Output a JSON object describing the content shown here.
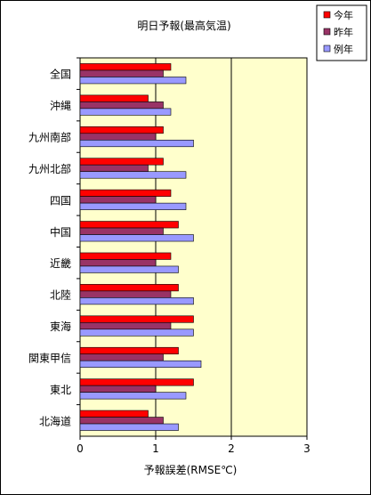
{
  "chart_data": {
    "type": "bar",
    "orientation": "horizontal",
    "title": "明日予報(最高気温)",
    "xlabel": "予報誤差(RMSE℃)",
    "xlim": [
      0,
      3
    ],
    "xticks": [
      "0",
      "1",
      "2",
      "3"
    ],
    "grid": "vertical major lines",
    "legend_position": "top-right",
    "plot_background": "#FFFFCC",
    "categories": [
      "全国",
      "沖縄",
      "九州南部",
      "九州北部",
      "四国",
      "中国",
      "近畿",
      "北陸",
      "東海",
      "関東甲信",
      "東北",
      "北海道"
    ],
    "series": [
      {
        "name": "今年",
        "color": "#FF0000",
        "values": [
          1.2,
          0.9,
          1.1,
          1.1,
          1.2,
          1.3,
          1.2,
          1.3,
          1.5,
          1.3,
          1.5,
          0.9
        ]
      },
      {
        "name": "昨年",
        "color": "#993366",
        "values": [
          1.1,
          1.1,
          1.0,
          0.9,
          1.0,
          1.1,
          1.0,
          1.2,
          1.2,
          1.1,
          1.0,
          1.1
        ]
      },
      {
        "name": "例年",
        "color": "#9999FF",
        "values": [
          1.4,
          1.2,
          1.5,
          1.4,
          1.4,
          1.5,
          1.3,
          1.5,
          1.5,
          1.6,
          1.4,
          1.3
        ]
      }
    ]
  }
}
